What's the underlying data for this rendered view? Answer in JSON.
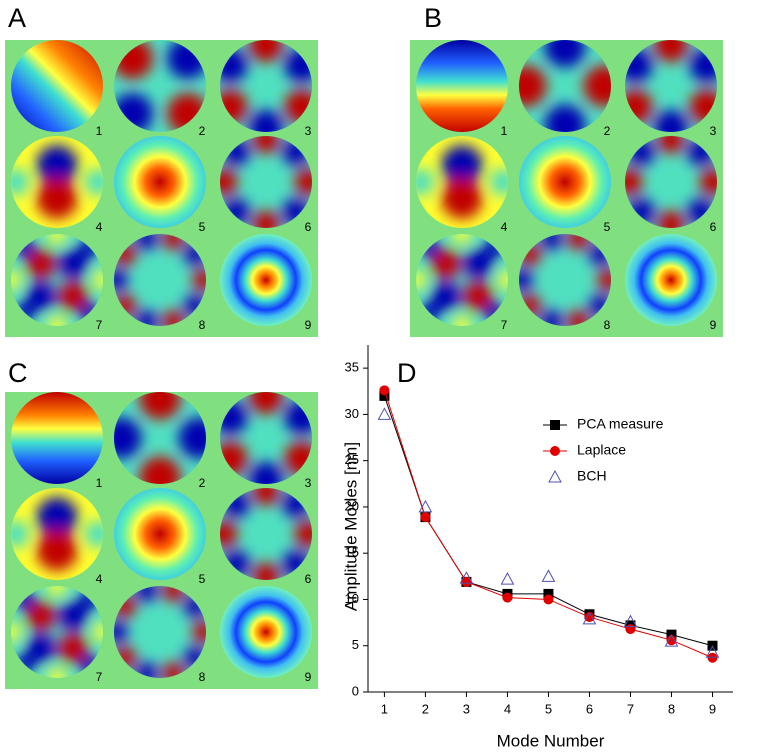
{
  "panels": [
    {
      "label": "A",
      "modes": [
        "1",
        "2",
        "3",
        "4",
        "5",
        "6",
        "7",
        "8",
        "9"
      ]
    },
    {
      "label": "B",
      "modes": [
        "1",
        "2",
        "3",
        "4",
        "5",
        "6",
        "7",
        "8",
        "9"
      ]
    },
    {
      "label": "C",
      "modes": [
        "1",
        "2",
        "3",
        "4",
        "5",
        "6",
        "7",
        "8",
        "9"
      ]
    }
  ],
  "chart_data": {
    "type": "line",
    "panel_label": "D",
    "x_label": "Mode Number",
    "y_label": "Amplitude Modes [nm]",
    "x": [
      1,
      2,
      3,
      4,
      5,
      6,
      7,
      8,
      9
    ],
    "xlim": [
      0.6,
      9.5
    ],
    "xticks": [
      1,
      2,
      3,
      4,
      5,
      6,
      7,
      8,
      9
    ],
    "ylim": [
      0,
      37.5
    ],
    "yticks": [
      0,
      5,
      10,
      15,
      20,
      25,
      30,
      35
    ],
    "legend_position": "upper right",
    "series": [
      {
        "name": "PCA measure",
        "color": "#000000",
        "marker": "square",
        "line": true,
        "values": [
          32.0,
          18.9,
          11.9,
          10.6,
          10.6,
          8.4,
          7.2,
          6.2,
          5.0
        ]
      },
      {
        "name": "Laplace",
        "color": "#e00000",
        "marker": "circle",
        "line": true,
        "values": [
          32.6,
          18.9,
          11.9,
          10.2,
          10.0,
          8.1,
          6.8,
          5.6,
          3.7
        ]
      },
      {
        "name": "BCH",
        "color": "#5050b0",
        "marker": "open-triangle",
        "line": false,
        "values": [
          30.0,
          20.0,
          12.3,
          12.2,
          12.5,
          7.9,
          7.6,
          5.5,
          4.3
        ]
      }
    ]
  }
}
